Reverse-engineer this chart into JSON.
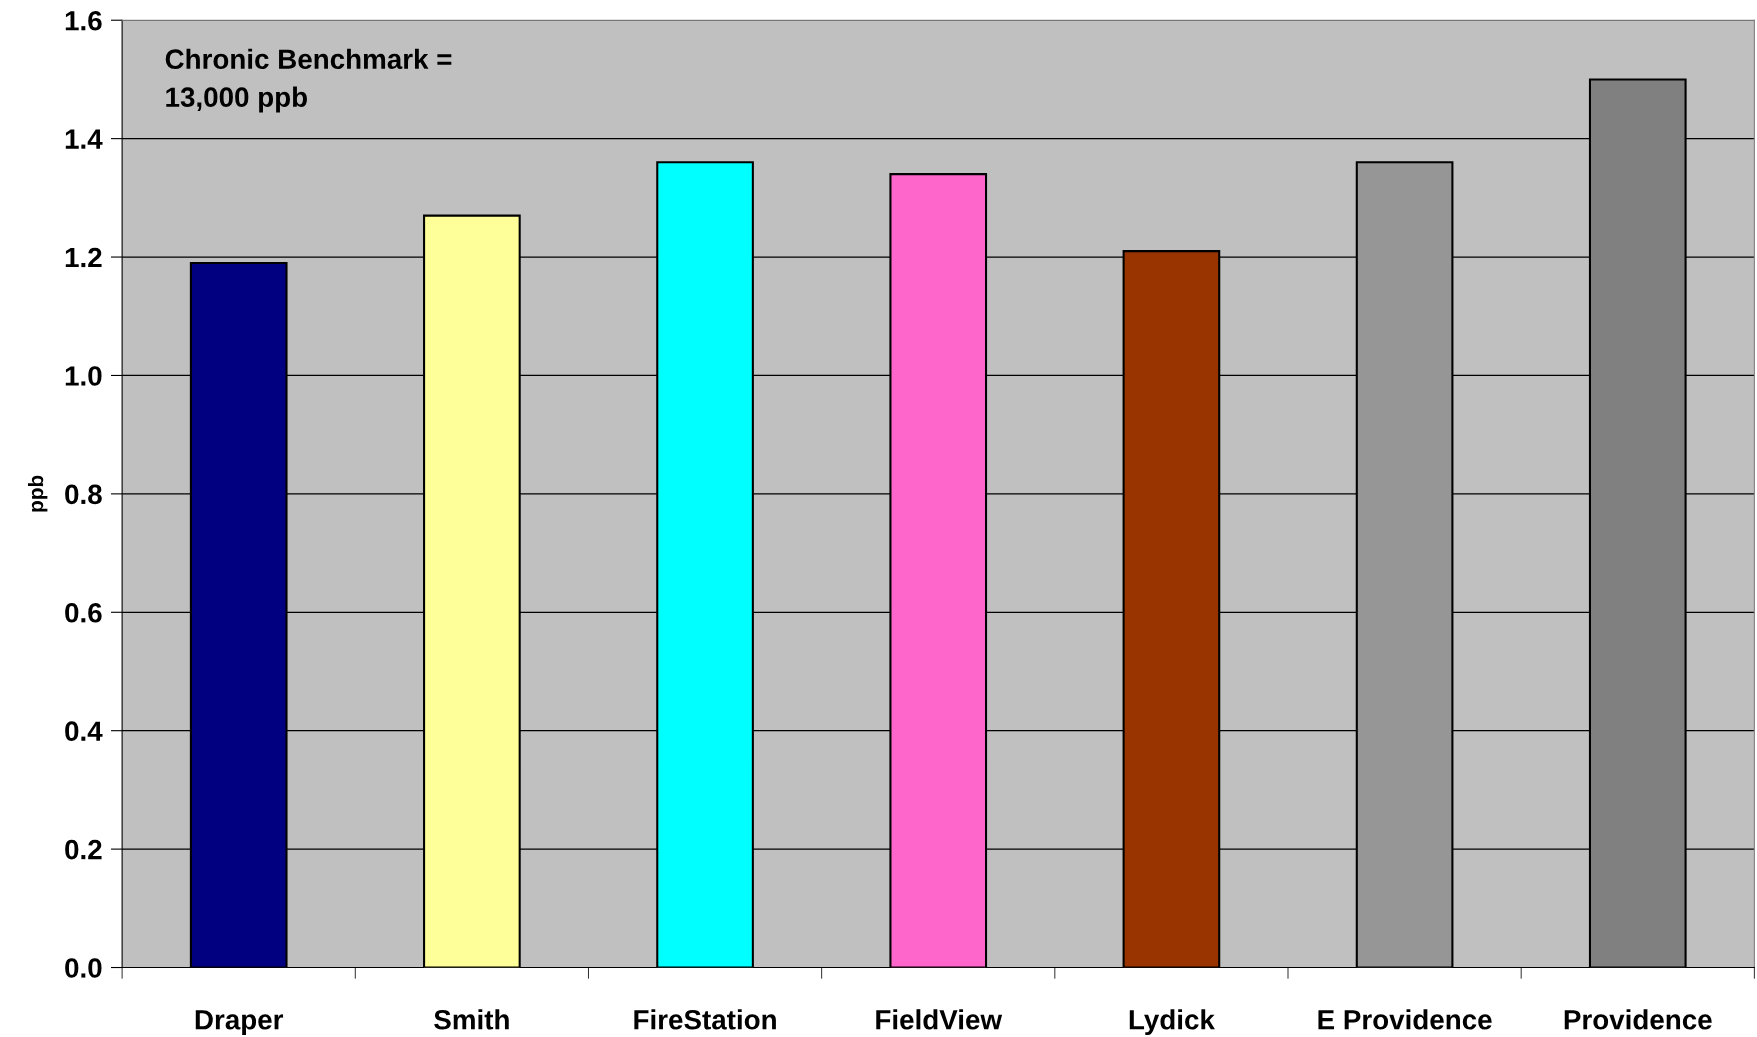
{
  "chart_data": {
    "type": "bar",
    "ylabel": "ppb",
    "categories": [
      "Draper",
      "Smith",
      "FireStation",
      "FieldView",
      "Lydick",
      "E Providence",
      "Providence"
    ],
    "values": [
      1.19,
      1.27,
      1.36,
      1.34,
      1.21,
      1.36,
      1.5
    ],
    "colors": [
      "#000080",
      "#ffff99",
      "#00ffff",
      "#ff66cc",
      "#993300",
      "#969696",
      "#808080"
    ],
    "ylim": [
      0,
      1.6
    ],
    "yticks": [
      {
        "value": 0,
        "label": "0.0"
      },
      {
        "value": 0.2,
        "label": "0.2"
      },
      {
        "value": 0.4,
        "label": "0.4"
      },
      {
        "value": 0.6,
        "label": "0.6"
      },
      {
        "value": 0.8,
        "label": "0.8"
      },
      {
        "value": 1.0,
        "label": "1.0"
      },
      {
        "value": 1.2,
        "label": "1.2"
      },
      {
        "value": 1.4,
        "label": "1.4"
      },
      {
        "value": 1.6,
        "label": "1.6"
      }
    ],
    "grid": "y",
    "annotations": [
      "Chronic Benchmark =\n13,000 ppb"
    ]
  }
}
